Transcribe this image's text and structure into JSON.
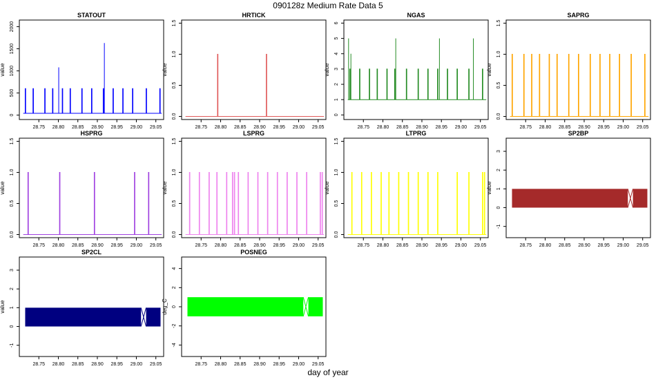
{
  "page": {
    "title": "090128z   Medium Rate Data 5",
    "xlabel": "day of year"
  },
  "chart_data": [
    {
      "name": "STATOUT",
      "type": "line",
      "color": "#0000ff",
      "ylabel": "value",
      "xlim": [
        28.7,
        29.07
      ],
      "ylim": [
        -100,
        2150
      ],
      "xticks": [
        "28.75",
        "28.80",
        "28.85",
        "28.90",
        "28.95",
        "29.00",
        "29.05"
      ],
      "yticks": [
        "0",
        "500",
        "1000",
        "1500",
        "2000"
      ],
      "pulse": {
        "low": 40,
        "high": 600,
        "x": [
          28.715,
          28.735,
          28.765,
          28.785,
          28.81,
          28.83,
          28.86,
          28.885,
          28.915,
          28.94,
          28.965,
          28.99,
          29.025,
          29.06
        ]
      },
      "spikes": [
        {
          "x": 28.801,
          "y": 1080
        },
        {
          "x": 28.918,
          "y": 1630
        }
      ]
    },
    {
      "name": "HRTICK",
      "type": "line",
      "color": "#e05a5a",
      "ylabel": "value",
      "xlim": [
        28.7,
        29.07
      ],
      "ylim": [
        -0.05,
        1.55
      ],
      "xticks": [
        "28.75",
        "28.80",
        "28.85",
        "28.90",
        "28.95",
        "29.00",
        "29.05"
      ],
      "yticks": [
        "0.0",
        "0.5",
        "1.0",
        "1.5"
      ],
      "pulse": {
        "low": 0,
        "high": 1,
        "x": [
          28.792,
          28.917
        ]
      }
    },
    {
      "name": "NGAS",
      "type": "line",
      "color": "#238b22",
      "ylabel": "value",
      "xlim": [
        28.7,
        29.07
      ],
      "ylim": [
        -0.3,
        6.2
      ],
      "xticks": [
        "28.75",
        "28.80",
        "28.85",
        "28.90",
        "28.95",
        "29.00",
        "29.05"
      ],
      "yticks": [
        "0",
        "1",
        "2",
        "3",
        "4",
        "5",
        "6"
      ],
      "pulse": {
        "low": 1,
        "high": 3,
        "x": [
          28.715,
          28.74,
          28.765,
          28.785,
          28.81,
          28.83,
          28.86,
          28.89,
          28.915,
          28.94,
          28.965,
          28.99,
          29.02,
          29.055
        ]
      },
      "spikes": [
        {
          "x": 28.712,
          "y": 5
        },
        {
          "x": 28.718,
          "y": 4
        },
        {
          "x": 28.833,
          "y": 5
        },
        {
          "x": 28.945,
          "y": 5
        },
        {
          "x": 29.032,
          "y": 5
        }
      ]
    },
    {
      "name": "SAPRG",
      "type": "line",
      "color": "#ffa500",
      "ylabel": "value",
      "xlim": [
        28.7,
        29.07
      ],
      "ylim": [
        -0.05,
        1.55
      ],
      "xticks": [
        "28.75",
        "28.80",
        "28.85",
        "28.90",
        "28.95",
        "29.00",
        "29.05"
      ],
      "yticks": [
        "0.0",
        "0.5",
        "1.0",
        "1.5"
      ],
      "pulse": {
        "low": 0,
        "high": 1,
        "x": [
          28.715,
          28.745,
          28.765,
          28.785,
          28.81,
          28.83,
          28.86,
          28.885,
          28.915,
          28.94,
          28.965,
          28.99,
          29.02,
          29.055
        ]
      }
    },
    {
      "name": "HSPRG",
      "type": "line",
      "color": "#a040e0",
      "ylabel": "value",
      "xlim": [
        28.7,
        29.07
      ],
      "ylim": [
        -0.05,
        1.55
      ],
      "xticks": [
        "28.75",
        "28.80",
        "28.85",
        "28.90",
        "28.95",
        "29.00",
        "29.05"
      ],
      "yticks": [
        "0.0",
        "0.5",
        "1.0",
        "1.5"
      ],
      "pulse": {
        "low": 0,
        "high": 1,
        "x": [
          28.722,
          28.803,
          28.892,
          28.995,
          29.031
        ]
      }
    },
    {
      "name": "LSPRG",
      "type": "line",
      "color": "#ee82ee",
      "ylabel": "value",
      "xlim": [
        28.7,
        29.07
      ],
      "ylim": [
        -0.05,
        1.55
      ],
      "xticks": [
        "28.75",
        "28.80",
        "28.85",
        "28.90",
        "28.95",
        "29.00",
        "29.05"
      ],
      "yticks": [
        "0.0",
        "0.5",
        "1.0",
        "1.5"
      ],
      "pulse": {
        "low": 0,
        "high": 1,
        "x": [
          28.72,
          28.745,
          28.77,
          28.79,
          28.815,
          28.83,
          28.835,
          28.845,
          28.87,
          28.895,
          28.92,
          28.945,
          28.97,
          28.995,
          29.02,
          29.055,
          29.06
        ]
      }
    },
    {
      "name": "LTPRG",
      "type": "line",
      "color": "#ffff00",
      "ylabel": "value",
      "xlim": [
        28.7,
        29.07
      ],
      "ylim": [
        -0.05,
        1.55
      ],
      "xticks": [
        "28.75",
        "28.80",
        "28.85",
        "28.90",
        "28.95",
        "29.00",
        "29.05"
      ],
      "yticks": [
        "0.0",
        "0.5",
        "1.0",
        "1.5"
      ],
      "pulse": {
        "low": 0,
        "high": 1,
        "x": [
          28.72,
          28.745,
          28.77,
          28.795,
          28.815,
          28.84,
          28.865,
          28.89,
          28.915,
          28.94,
          28.99,
          29.02,
          29.055,
          29.06
        ]
      }
    },
    {
      "name": "SP2BP",
      "type": "area",
      "color": "#a52a2a",
      "ylabel": "value",
      "xlim": [
        28.7,
        29.07
      ],
      "ylim": [
        -1.6,
        3.7
      ],
      "xticks": [
        "28.75",
        "28.80",
        "28.85",
        "28.90",
        "28.95",
        "29.00",
        "29.05"
      ],
      "yticks": [
        "-1",
        "0",
        "1",
        "2",
        "3"
      ],
      "band": {
        "low": 0,
        "high": 1,
        "segments": [
          [
            28.715,
            29.012
          ],
          [
            29.025,
            29.062
          ]
        ]
      }
    },
    {
      "name": "SP2CL",
      "type": "area",
      "color": "#000080",
      "ylabel": "value",
      "xlim": [
        28.7,
        29.07
      ],
      "ylim": [
        -1.6,
        3.7
      ],
      "xticks": [
        "28.75",
        "28.80",
        "28.85",
        "28.90",
        "28.95",
        "29.00",
        "29.05"
      ],
      "yticks": [
        "-1",
        "0",
        "1",
        "2",
        "3"
      ],
      "band": {
        "low": 0,
        "high": 1,
        "segments": [
          [
            28.715,
            29.012
          ],
          [
            29.025,
            29.062
          ]
        ]
      }
    },
    {
      "name": "POSNEG",
      "type": "area",
      "color": "#00ff00",
      "ylabel": "deg_C",
      "xlim": [
        28.7,
        29.07
      ],
      "ylim": [
        -5.2,
        5.2
      ],
      "xticks": [
        "28.75",
        "28.80",
        "28.85",
        "28.90",
        "28.95",
        "29.00",
        "29.05"
      ],
      "yticks": [
        "-4",
        "-2",
        "0",
        "2",
        "4"
      ],
      "band": {
        "low": -1,
        "high": 1,
        "segments": [
          [
            28.715,
            29.012
          ],
          [
            29.025,
            29.062
          ]
        ]
      }
    }
  ]
}
